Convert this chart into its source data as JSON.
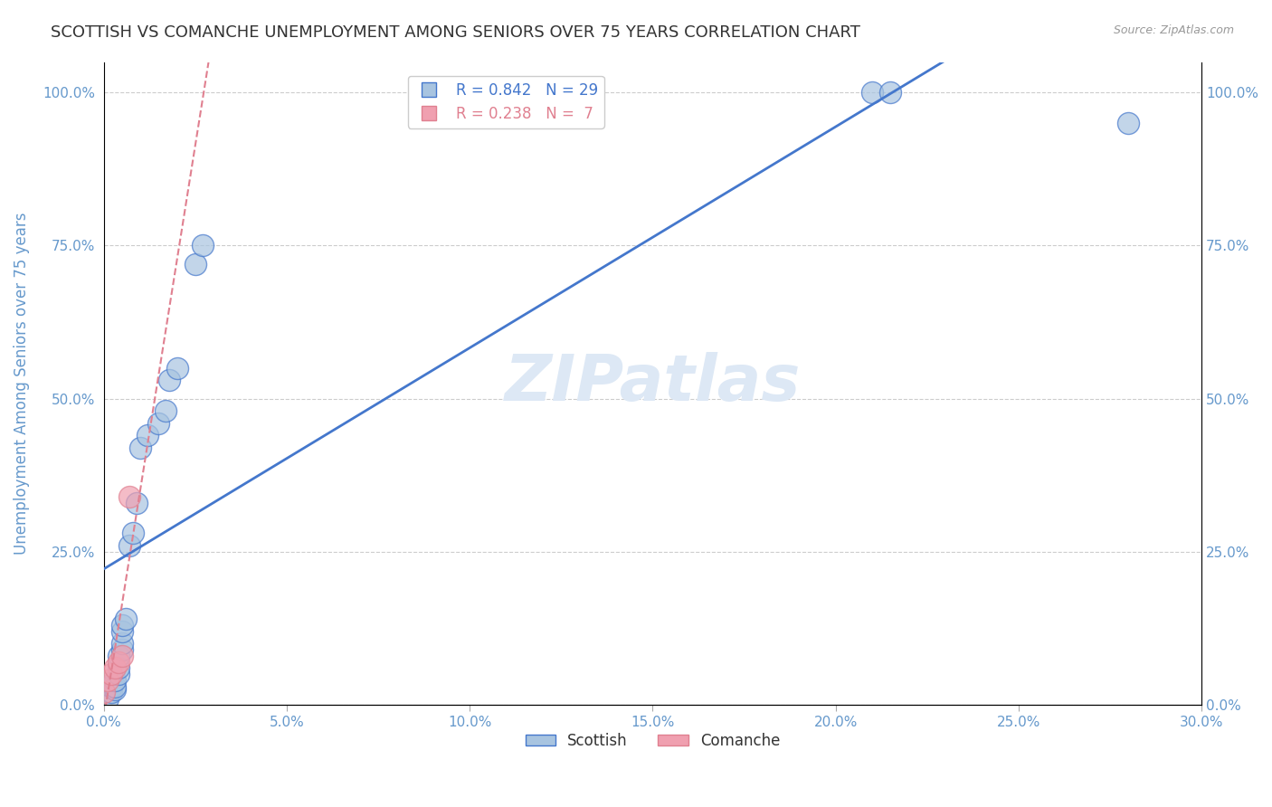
{
  "title": "SCOTTISH VS COMANCHE UNEMPLOYMENT AMONG SENIORS OVER 75 YEARS CORRELATION CHART",
  "source": "Source: ZipAtlas.com",
  "xlabel_ticks": [
    "0.0%",
    "5.0%",
    "10.0%",
    "15.0%",
    "20.0%",
    "25.0%",
    "30.0%"
  ],
  "ylabel_ticks": [
    "0.0%",
    "25.0%",
    "50.0%",
    "75.0%",
    "100.0%"
  ],
  "ylabel_label": "Unemployment Among Seniors over 75 years",
  "watermark": "ZIPatlas",
  "legend_label1": "R = 0.842   N = 29",
  "legend_label2": "R = 0.238   N =  7",
  "legend_entry1": "Scottish",
  "legend_entry2": "Comanche",
  "scottish_x": [
    0.001,
    0.002,
    0.002,
    0.003,
    0.003,
    0.003,
    0.004,
    0.004,
    0.004,
    0.005,
    0.005,
    0.005,
    0.005,
    0.006,
    0.007,
    0.008,
    0.009,
    0.01,
    0.012,
    0.015,
    0.017,
    0.018,
    0.02,
    0.025,
    0.027,
    0.09,
    0.21,
    0.215,
    0.28
  ],
  "scottish_y": [
    0.01,
    0.02,
    0.03,
    0.025,
    0.03,
    0.04,
    0.05,
    0.06,
    0.08,
    0.09,
    0.1,
    0.12,
    0.13,
    0.14,
    0.26,
    0.28,
    0.33,
    0.42,
    0.44,
    0.46,
    0.48,
    0.53,
    0.55,
    0.72,
    0.75,
    1.0,
    1.0,
    1.0,
    0.95
  ],
  "comanche_x": [
    0.0,
    0.001,
    0.002,
    0.003,
    0.004,
    0.005,
    0.007
  ],
  "comanche_y": [
    0.02,
    0.04,
    0.05,
    0.06,
    0.07,
    0.08,
    0.34
  ],
  "scottish_color": "#a8c4e0",
  "comanche_color": "#f0a0b0",
  "line_color_scottish": "#4477cc",
  "line_color_comanche": "#e08090",
  "bg_color": "#ffffff",
  "grid_color": "#cccccc",
  "title_color": "#333333",
  "axis_label_color": "#6699cc",
  "tick_label_color": "#6699cc",
  "source_color": "#999999",
  "watermark_color": "#dde8f5",
  "xlim": [
    0.0,
    0.3
  ],
  "ylim": [
    0.0,
    1.05
  ]
}
